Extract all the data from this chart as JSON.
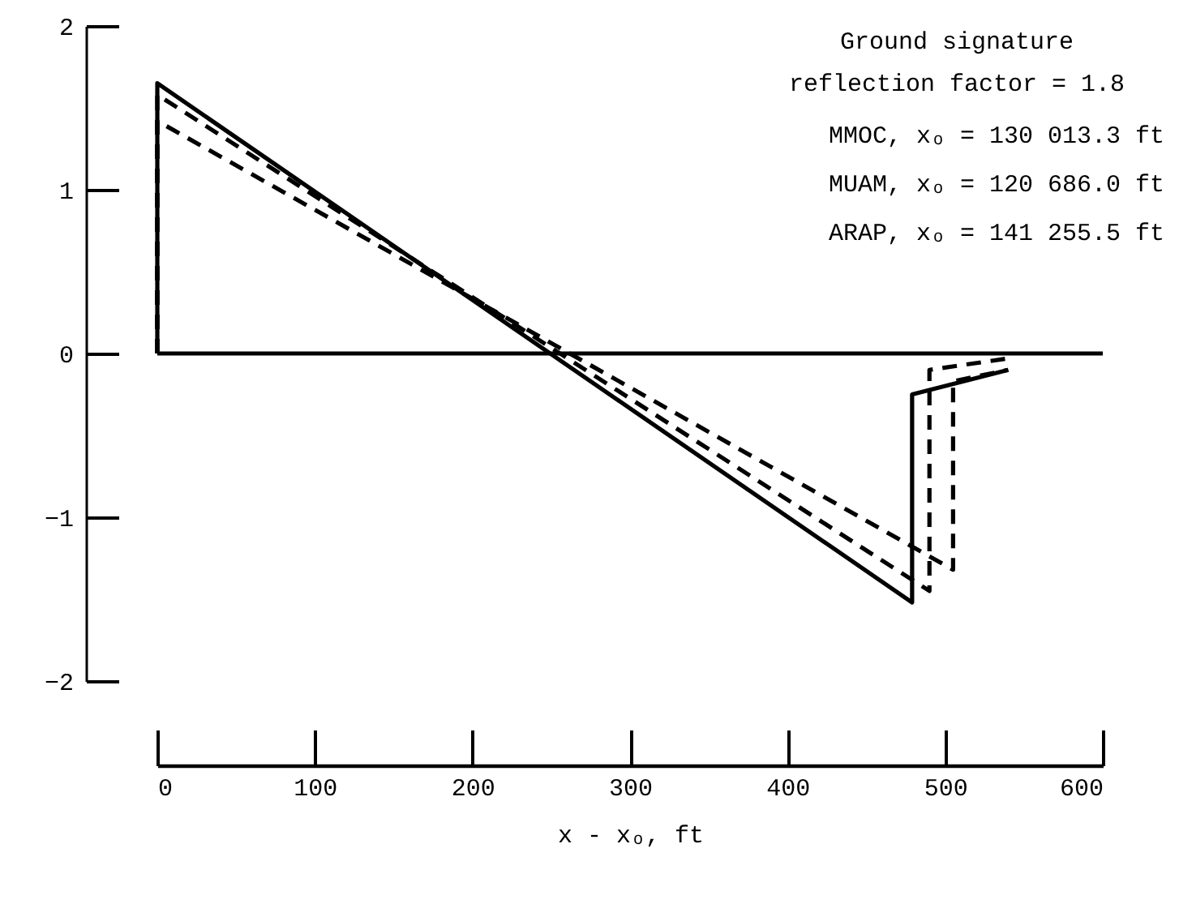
{
  "chart_data": {
    "type": "line",
    "xlabel": "x - xₒ, ft",
    "annotations": [
      "Ground signature",
      "reflection factor = 1.8",
      "MMOC, xₒ = 130 013.3 ft",
      "MUAM, xₒ = 120 686.0 ft",
      "ARAP, xₒ = 141 255.5 ft"
    ],
    "series": [
      {
        "color": "#000000",
        "line_style": "solid",
        "x": [
          0,
          0,
          479,
          479,
          540
        ],
        "values": [
          0,
          1.65,
          -1.52,
          -0.25,
          -0.1
        ]
      },
      {
        "color": "#000000",
        "line_style": "dashed",
        "x": [
          0,
          0,
          490,
          490,
          540
        ],
        "values": [
          0,
          1.58,
          -1.45,
          -0.1,
          -0.03
        ]
      },
      {
        "color": "#000000",
        "line_style": "dashed",
        "x": [
          0,
          0,
          505,
          505,
          540
        ],
        "values": [
          0,
          1.42,
          -1.32,
          -0.17,
          -0.1
        ]
      }
    ],
    "ref_lines": [
      {
        "axis": "y",
        "value": 0,
        "color": "#000000"
      }
    ],
    "xlim": [
      0,
      600
    ],
    "xticks": [
      0,
      100,
      200,
      300,
      400,
      500,
      600
    ],
    "ylim": [
      -2,
      2
    ],
    "yticks": [
      -2,
      -1,
      0,
      1,
      2
    ],
    "grid": false,
    "marker": "none"
  }
}
